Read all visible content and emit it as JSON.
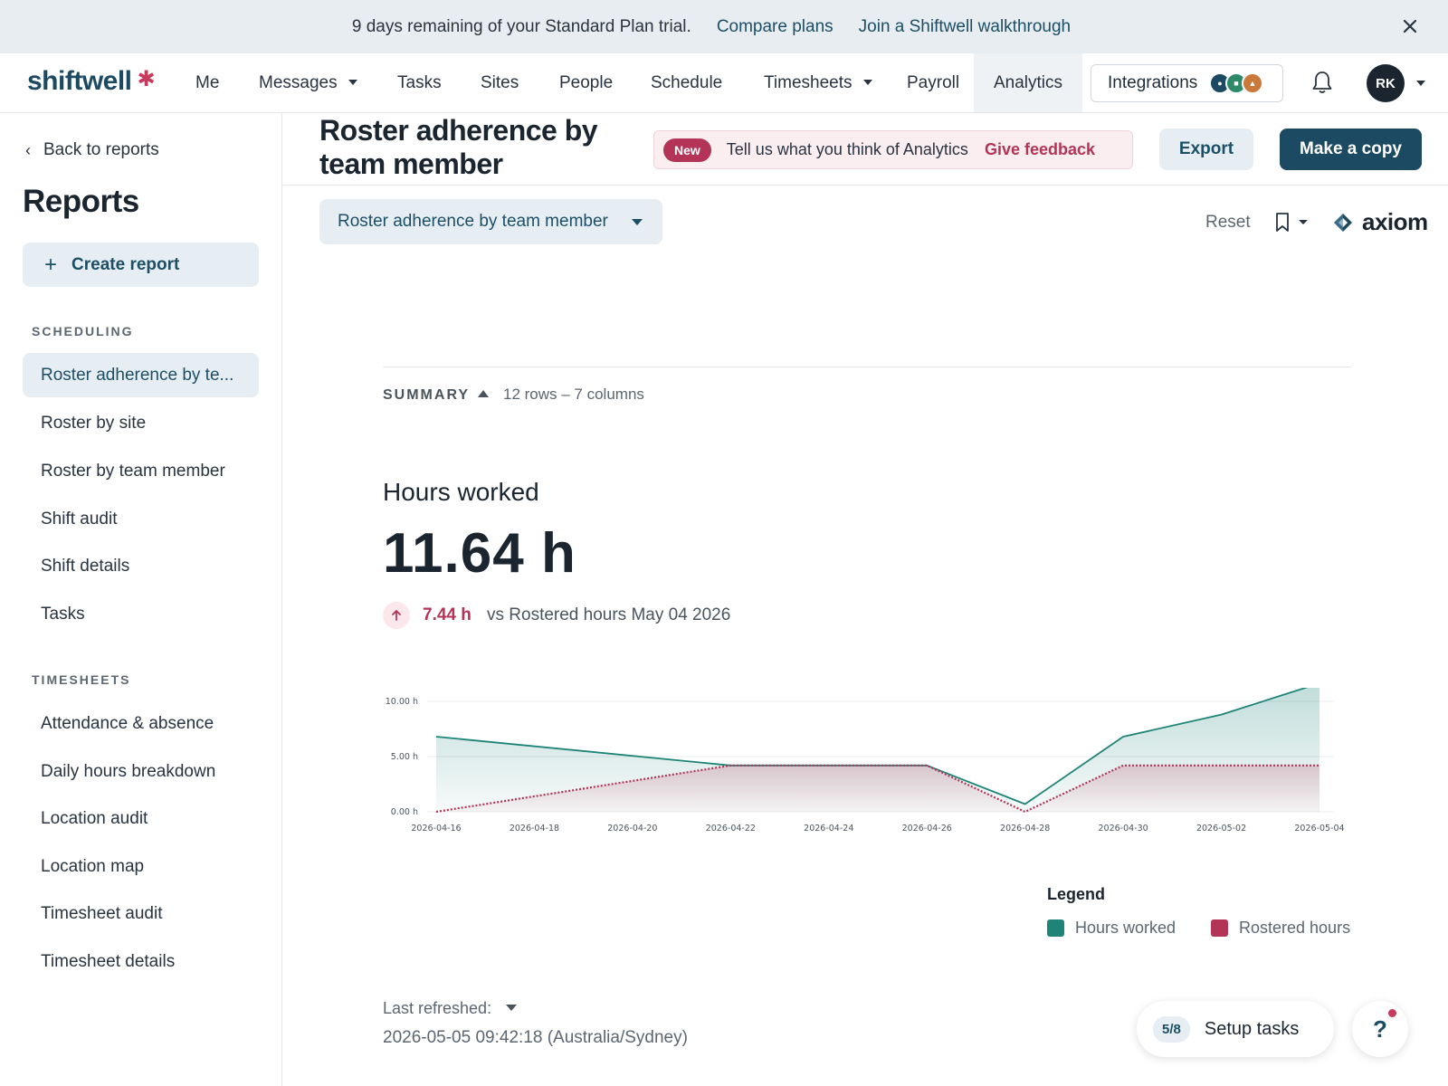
{
  "banner": {
    "message": "9 days remaining of your Standard Plan trial.",
    "compare_link": "Compare plans",
    "walkthrough_link": "Join a Shiftwell walkthrough"
  },
  "nav": {
    "logo": "shiftwell",
    "items": [
      "Me",
      "Messages",
      "Tasks",
      "Sites",
      "People",
      "Schedule",
      "Timesheets",
      "Payroll",
      "Analytics"
    ],
    "active": "Analytics",
    "integrations_label": "Integrations",
    "avatar_initials": "RK"
  },
  "sidebar": {
    "back_label": "Back to reports",
    "title": "Reports",
    "create_label": "Create report",
    "scheduling_label": "SCHEDULING",
    "scheduling_items": [
      "Roster adherence by te...",
      "Roster by site",
      "Roster by team member",
      "Shift audit",
      "Shift details",
      "Tasks"
    ],
    "timesheets_label": "TIMESHEETS",
    "timesheets_items": [
      "Attendance & absence",
      "Daily hours breakdown",
      "Location audit",
      "Location map",
      "Timesheet audit",
      "Timesheet details"
    ]
  },
  "header": {
    "title": "Roster adherence by team member",
    "feedback_badge": "New",
    "feedback_text": "Tell us what you think of Analytics",
    "feedback_link": "Give feedback",
    "export_label": "Export",
    "copy_label": "Make a copy"
  },
  "toolbar": {
    "report_select": "Roster adherence by team member",
    "reset_label": "Reset",
    "brand": "axiom"
  },
  "summary": {
    "label": "SUMMARY",
    "meta": "12 rows – 7 columns",
    "metric_label": "Hours worked",
    "metric_value": "11.64 h",
    "delta_value": "7.44 h",
    "delta_compare": "vs Rostered hours May 04 2026"
  },
  "chart_data": {
    "type": "area",
    "y_tick_labels": [
      "0.00 h",
      "5.00 h",
      "10.00 h"
    ],
    "ylim": [
      0,
      10
    ],
    "x_tick_labels": [
      "2026-04-16",
      "2026-04-18",
      "2026-04-20",
      "2026-04-22",
      "2026-04-24",
      "2026-04-26",
      "2026-04-28",
      "2026-04-30",
      "2026-05-02",
      "2026-05-04"
    ],
    "series": [
      {
        "name": "Hours worked",
        "color": "#1e8478",
        "points": [
          [
            "2026-04-16",
            6.8
          ],
          [
            "2026-04-22",
            4.2
          ],
          [
            "2026-04-26",
            4.2
          ],
          [
            "2026-04-28",
            0.7
          ],
          [
            "2026-04-30",
            6.8
          ],
          [
            "2026-05-02",
            8.8
          ],
          [
            "2026-05-04",
            11.64
          ]
        ]
      },
      {
        "name": "Rostered hours",
        "color": "#b33457",
        "points": [
          [
            "2026-04-16",
            0
          ],
          [
            "2026-04-22",
            4.2
          ],
          [
            "2026-04-26",
            4.2
          ],
          [
            "2026-04-28",
            0
          ],
          [
            "2026-04-30",
            4.2
          ],
          [
            "2026-05-04",
            4.2
          ]
        ]
      }
    ],
    "legend_title": "Legend",
    "legend_position": "bottom-right",
    "grid": true
  },
  "footer": {
    "refreshed_label": "Last refreshed:",
    "refreshed_value": "2026-05-05 09:42:18 (Australia/Sydney)",
    "setup_count": "5/8",
    "setup_label": "Setup tasks",
    "help_label": "?"
  }
}
